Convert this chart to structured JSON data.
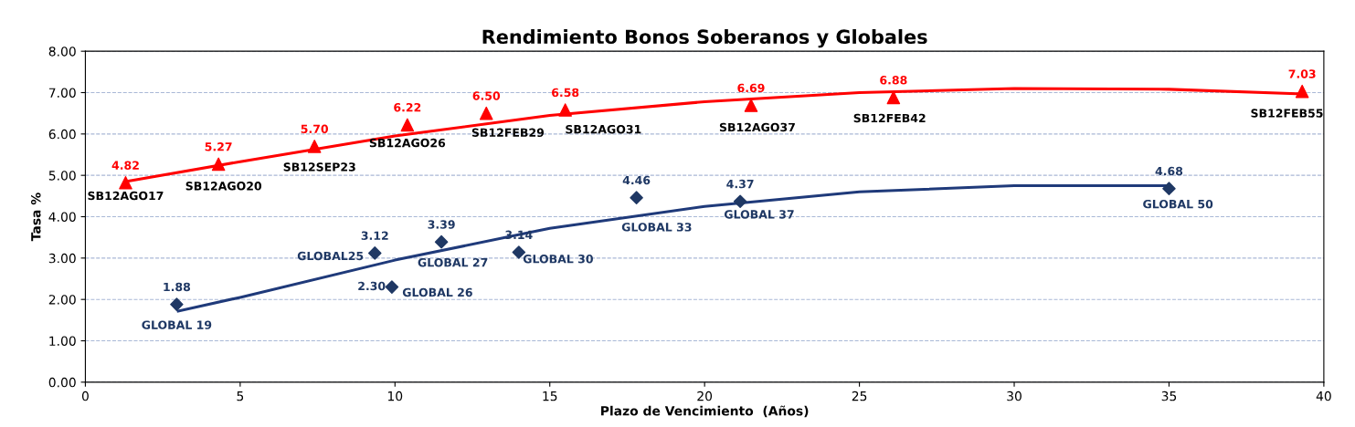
{
  "chart_data": {
    "type": "scatter",
    "title": "Rendimiento Bonos Soberanos y Globales",
    "xlabel": "Plazo de Vencimiento  (Años)",
    "ylabel": "Tasa %",
    "xlim": [
      0,
      40
    ],
    "xticks": [
      0,
      5,
      10,
      15,
      20,
      25,
      30,
      35,
      40
    ],
    "ylim": [
      0,
      8
    ],
    "yticks": [
      {
        "value": 0,
        "label": "0.00"
      },
      {
        "value": 1,
        "label": "1.00"
      },
      {
        "value": 2,
        "label": "2.00"
      },
      {
        "value": 3,
        "label": "3.00"
      },
      {
        "value": 4,
        "label": "4.00"
      },
      {
        "value": 5,
        "label": "5.00"
      },
      {
        "value": 6,
        "label": "6.00"
      },
      {
        "value": 7,
        "label": "7.00"
      },
      {
        "value": 8,
        "label": "8.00"
      }
    ],
    "grid": "y",
    "legend": false,
    "series": [
      {
        "type": "line",
        "color": "#ff0000",
        "x": [
          1.3,
          5,
          10,
          15,
          20,
          25,
          30,
          35,
          39.3
        ],
        "values": [
          4.85,
          5.33,
          5.95,
          6.45,
          6.78,
          7.0,
          7.1,
          7.08,
          6.97
        ],
        "marker": "none"
      },
      {
        "type": "line",
        "color": "#1f3a7a",
        "x": [
          3,
          5,
          10,
          15,
          20,
          25,
          30,
          35
        ],
        "values": [
          1.72,
          2.05,
          2.95,
          3.72,
          4.25,
          4.6,
          4.75,
          4.75
        ],
        "marker": "none"
      },
      {
        "color": "#ff0000",
        "marker": "triangle",
        "x": [
          1.3,
          4.3,
          7.4,
          10.4,
          12.95,
          15.5,
          21.5,
          26.1,
          39.3
        ],
        "values": [
          4.82,
          5.27,
          5.7,
          6.22,
          6.5,
          6.58,
          6.69,
          6.88,
          7.03
        ],
        "value_labels": [
          "4.82",
          "5.27",
          "5.70",
          "6.22",
          "6.50",
          "6.58",
          "6.69",
          "6.88",
          "7.03"
        ]
      },
      {
        "color": "#1f3864",
        "marker": "diamond",
        "x": [
          2.95,
          9.35,
          9.9,
          11.5,
          14.0,
          17.8,
          21.15,
          35.0
        ],
        "values": [
          1.88,
          3.12,
          2.3,
          3.39,
          3.14,
          4.46,
          4.37,
          4.68
        ],
        "value_labels": [
          "1.88",
          "3.12",
          "2.30",
          "3.39",
          "3.14",
          "4.46",
          "4.37",
          "4.68"
        ]
      }
    ],
    "annotations": [
      {
        "text": "SB12AGO17",
        "x": 1.3,
        "y": 4.82
      },
      {
        "text": "SB12AGO20",
        "x": 4.3,
        "y": 5.27
      },
      {
        "text": "SB12SEP23",
        "x": 7.4,
        "y": 5.7
      },
      {
        "text": "SB12AGO26",
        "x": 10.4,
        "y": 6.22
      },
      {
        "text": "SB12FEB29",
        "x": 12.95,
        "y": 6.5
      },
      {
        "text": "SB12AGO31",
        "x": 15.5,
        "y": 6.58
      },
      {
        "text": "SB12AGO37",
        "x": 21.5,
        "y": 6.69
      },
      {
        "text": "SB12FEB42",
        "x": 26.1,
        "y": 6.88
      },
      {
        "text": "SB12FEB55",
        "x": 39.3,
        "y": 7.03
      },
      {
        "text": "GLOBAL 19",
        "x": 2.95,
        "y": 1.88
      },
      {
        "text": "GLOBAL25",
        "x": 9.35,
        "y": 3.12
      },
      {
        "text": "GLOBAL 26",
        "x": 9.9,
        "y": 2.3
      },
      {
        "text": "GLOBAL 27",
        "x": 11.5,
        "y": 3.39
      },
      {
        "text": "GLOBAL 30",
        "x": 14.0,
        "y": 3.14
      },
      {
        "text": "GLOBAL 33",
        "x": 17.8,
        "y": 4.46
      },
      {
        "text": "GLOBAL 37",
        "x": 21.15,
        "y": 4.37
      },
      {
        "text": "GLOBAL 50",
        "x": 35.0,
        "y": 4.68
      }
    ]
  }
}
